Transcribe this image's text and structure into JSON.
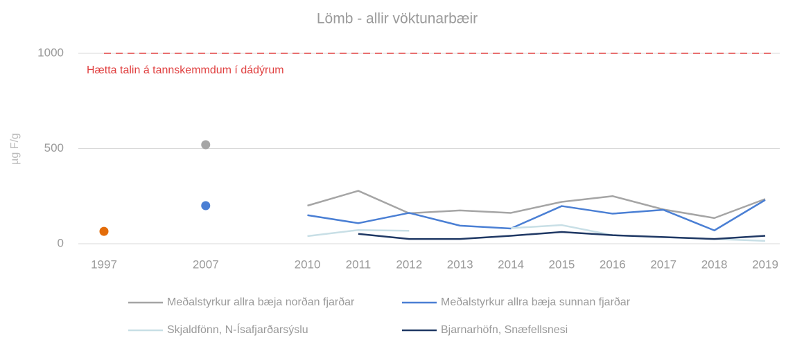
{
  "chart_data": {
    "type": "line",
    "title": "Lömb - allir vöktunarbæir",
    "y_label": "µg F/g",
    "categories": [
      "1997",
      null,
      "2007",
      null,
      "2010",
      "2011",
      "2012",
      "2013",
      "2014",
      "2015",
      "2016",
      "2017",
      "2018",
      "2019"
    ],
    "series": [
      {
        "color": "#e36c09",
        "values": [
          65,
          null,
          null,
          null,
          null,
          null,
          null,
          null,
          null,
          null,
          null,
          null,
          null,
          null
        ]
      },
      {
        "name": "Meðalstyrkur allra bæja norðan fjarðar",
        "color": "#a5a5a5",
        "values": [
          null,
          null,
          520,
          null,
          200,
          278,
          160,
          175,
          162,
          220,
          250,
          180,
          135,
          235
        ]
      },
      {
        "name": "Meðalstyrkur allra bæja sunnan fjarðar",
        "color": "#4a7fd4",
        "values": [
          null,
          null,
          200,
          null,
          150,
          108,
          162,
          95,
          80,
          198,
          158,
          178,
          70,
          230
        ]
      },
      {
        "name": "Skjaldfönn, N-Ísafjarðarsýslu",
        "color": "#c8dfe6",
        "values": [
          null,
          null,
          null,
          null,
          40,
          72,
          68,
          null,
          82,
          98,
          45,
          35,
          25,
          15
        ]
      },
      {
        "name": "Bjarnarhöfn, Snæfellsnesi",
        "color": "#1f3864",
        "values": [
          null,
          null,
          null,
          null,
          null,
          52,
          25,
          25,
          42,
          62,
          45,
          35,
          25,
          42
        ]
      }
    ],
    "reference_line": {
      "value": 1000,
      "label": "Hætta talin á tannskemmdum í dádýrum",
      "color": "#e04040"
    },
    "ylim": [
      0,
      1000
    ],
    "yticks": [
      0,
      500,
      1000
    ],
    "grid": true
  }
}
